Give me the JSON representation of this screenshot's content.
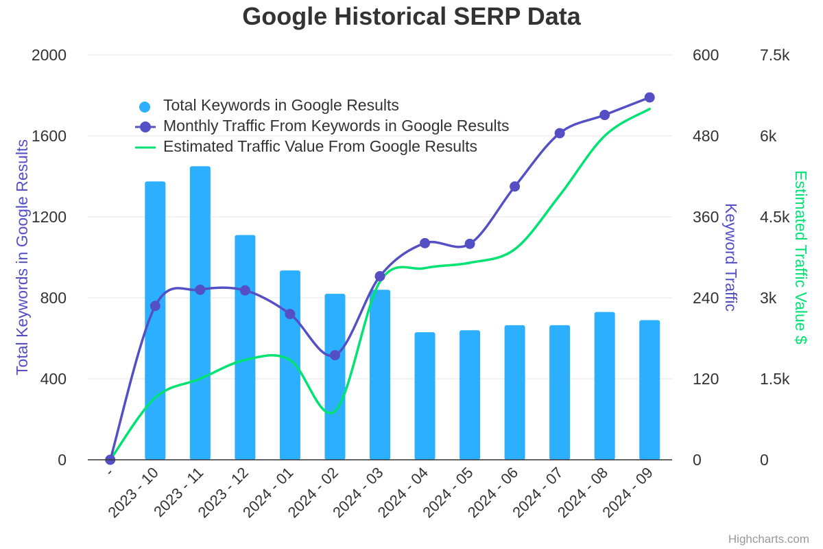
{
  "chart_data": {
    "type": "bar",
    "title": "Google Historical SERP Data",
    "categories": [
      "-",
      "2023 - 10",
      "2023 - 11",
      "2023 - 12",
      "2024 - 01",
      "2024 - 02",
      "2024 - 03",
      "2024 - 04",
      "2024 - 05",
      "2024 - 06",
      "2024 - 07",
      "2024 - 08",
      "2024 - 09"
    ],
    "series": [
      {
        "name": "Total Keywords in Google Results",
        "type": "column",
        "axis": "left",
        "color": "#2caffe",
        "values": [
          0,
          1375,
          1450,
          1110,
          935,
          820,
          840,
          630,
          640,
          665,
          665,
          730,
          690
        ]
      },
      {
        "name": "Monthly Traffic From Keywords in Google Results",
        "type": "spline",
        "axis": "right1",
        "color": "#544fc5",
        "markers": true,
        "values": [
          0,
          228,
          252,
          251,
          216,
          155,
          272,
          321,
          320,
          405,
          484,
          511,
          537
        ]
      },
      {
        "name": "Estimated Traffic Value From Google Results",
        "type": "spline",
        "axis": "right2",
        "color": "#00e272",
        "markers": false,
        "values": [
          0,
          1150,
          1500,
          1850,
          1850,
          900,
          3300,
          3550,
          3650,
          3900,
          4900,
          6000,
          6500
        ]
      }
    ],
    "axes": {
      "left": {
        "title": "Total Keywords in Google Results",
        "min": 0,
        "max": 2000,
        "ticks": [
          "0",
          "400",
          "800",
          "1200",
          "1600",
          "2000"
        ],
        "tick_values": [
          0,
          400,
          800,
          1200,
          1600,
          2000
        ],
        "title_color": "#544fc5"
      },
      "right1": {
        "title": "Keyword Traffic",
        "min": 0,
        "max": 600,
        "ticks": [
          "0",
          "120",
          "240",
          "360",
          "480",
          "600"
        ],
        "tick_values": [
          0,
          120,
          240,
          360,
          480,
          600
        ],
        "title_color": "#544fc5"
      },
      "right2": {
        "title": "Estimated Traffic Value $",
        "min": 0,
        "max": 7500,
        "ticks": [
          "0",
          "1.5k",
          "3k",
          "4.5k",
          "6k",
          "7.5k"
        ],
        "tick_values": [
          0,
          1500,
          3000,
          4500,
          6000,
          7500
        ],
        "title_color": "#00e272"
      }
    },
    "grid": true,
    "legend_placement": "top-left inside plot"
  },
  "credit": "Highcharts.com"
}
